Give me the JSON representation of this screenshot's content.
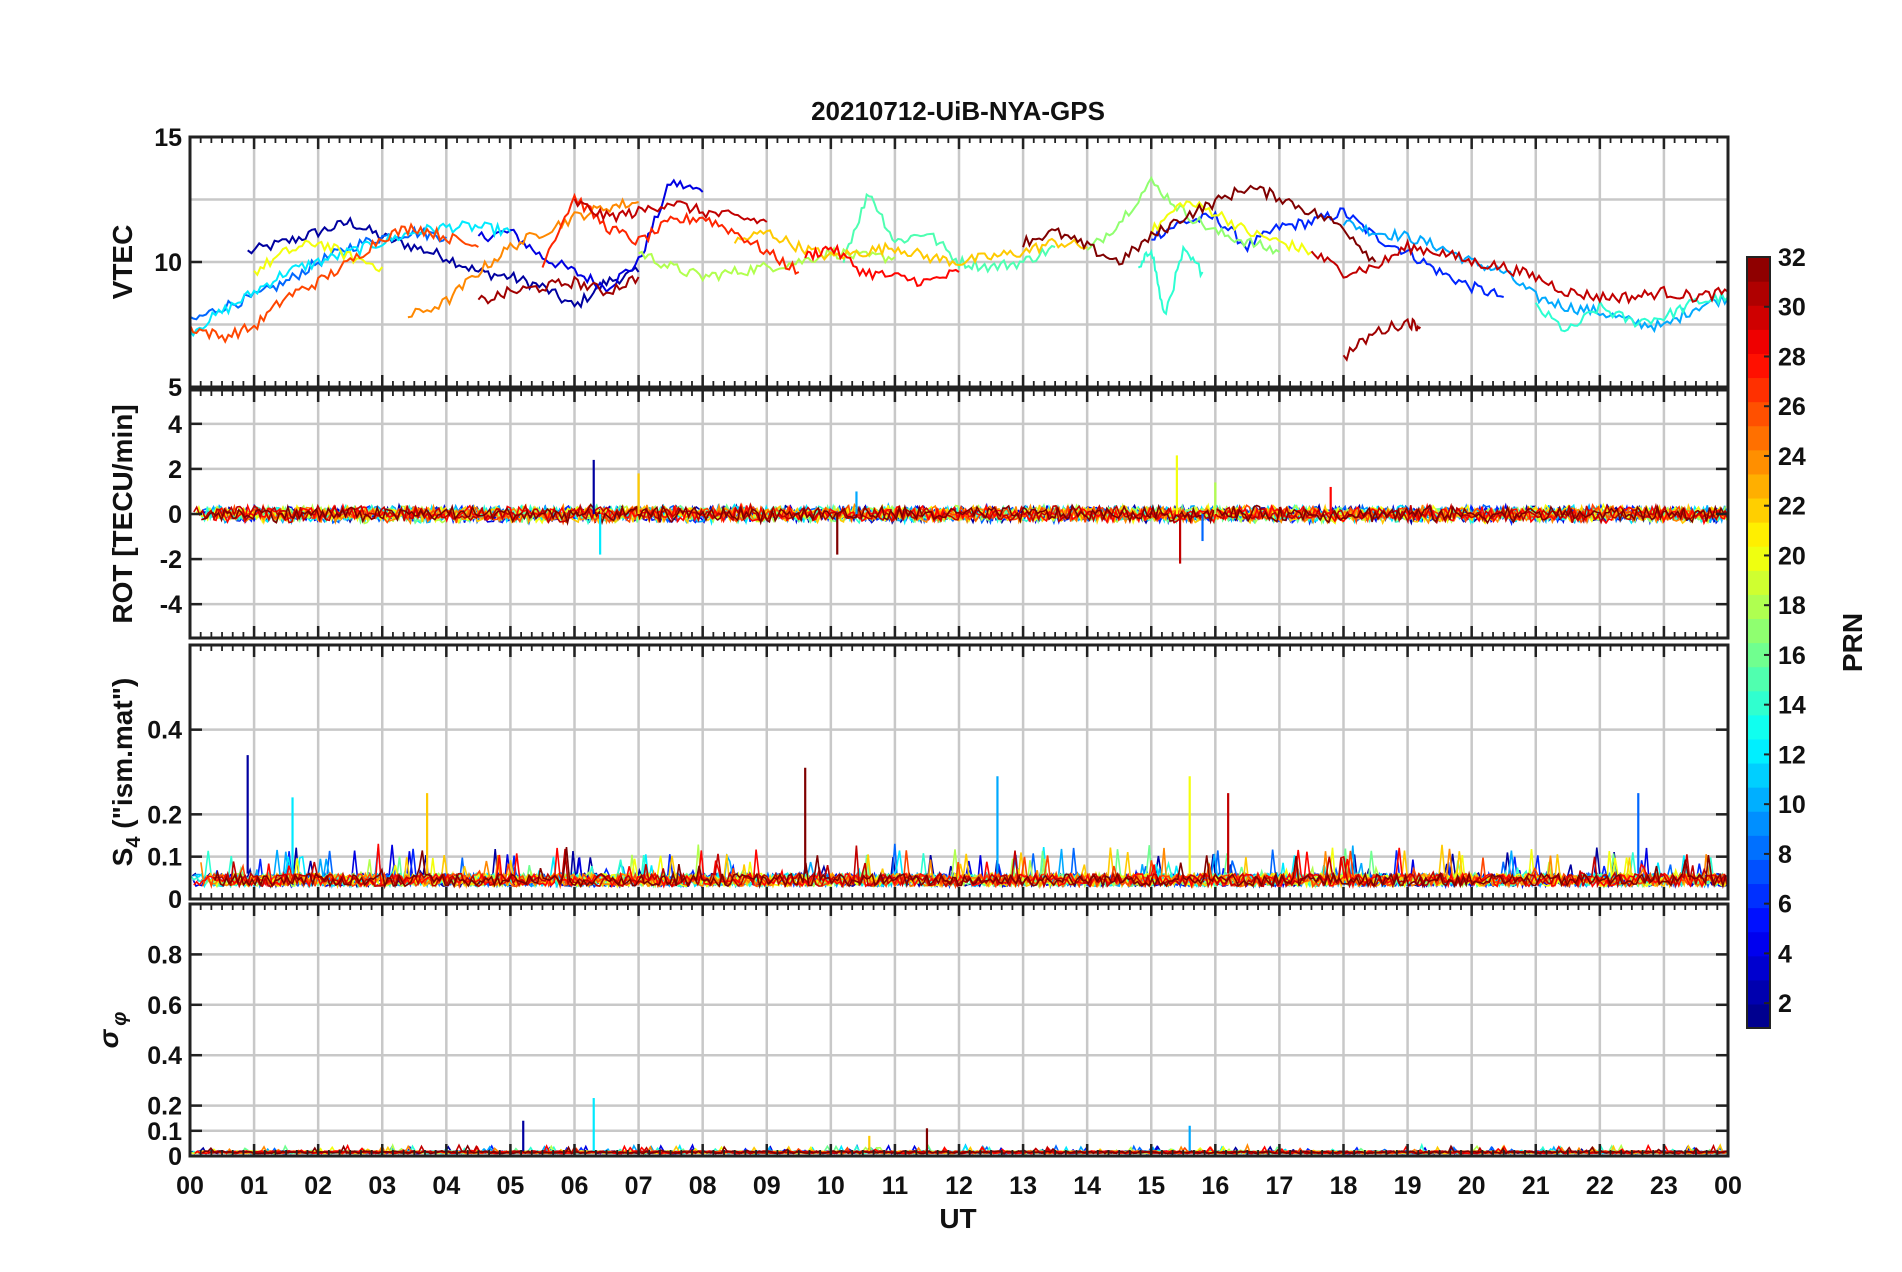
{
  "chart_data": {
    "type": "line",
    "title": "20210712-UiB-NYA-GPS",
    "xlabel": "UT",
    "x_tick_labels": [
      "00",
      "01",
      "02",
      "03",
      "04",
      "05",
      "06",
      "07",
      "08",
      "09",
      "10",
      "11",
      "12",
      "13",
      "14",
      "15",
      "16",
      "17",
      "18",
      "19",
      "20",
      "21",
      "22",
      "23",
      "00"
    ],
    "xlim": [
      0,
      24
    ],
    "panels": [
      {
        "id": "vtec",
        "ylabel": "VTEC",
        "ylim": [
          5,
          15
        ],
        "yticks": [
          5,
          10,
          15
        ],
        "ytick_labels": [
          "5",
          "10",
          "15"
        ],
        "minor_grid_ystep": 2.5,
        "series": [
          {
            "prn": 2,
            "x": [
              0.9,
              1.5,
              2.0,
              2.5,
              3.0,
              3.5,
              4.0,
              4.5,
              5.0,
              5.5,
              6.0,
              6.5,
              7.0
            ],
            "y": [
              10.4,
              10.8,
              11.2,
              11.6,
              11.0,
              10.6,
              10.2,
              9.6,
              9.4,
              9.0,
              8.2,
              9.2,
              9.6
            ]
          },
          {
            "prn": 4,
            "x": [
              4.5,
              5.0,
              5.5,
              6.0,
              6.5,
              7.0,
              7.5,
              8.0
            ],
            "y": [
              11.0,
              11.2,
              10.2,
              9.6,
              9.0,
              10.0,
              13.2,
              12.8
            ]
          },
          {
            "prn": 6,
            "x": [
              15.0,
              15.5,
              16.0,
              16.5,
              17.0,
              17.5,
              18.0,
              18.5,
              19.0,
              19.5,
              20.0,
              20.5
            ],
            "y": [
              11.0,
              11.6,
              11.8,
              10.6,
              11.4,
              11.6,
              12.0,
              11.0,
              10.4,
              9.6,
              9.0,
              8.6
            ]
          },
          {
            "prn": 8,
            "x": [
              0.0,
              0.5,
              1.0,
              1.5,
              2.0,
              2.5,
              3.0,
              3.5,
              4.0
            ],
            "y": [
              7.6,
              8.2,
              8.6,
              9.2,
              10.0,
              10.6,
              11.0,
              11.2,
              11.0
            ]
          },
          {
            "prn": 10,
            "x": [
              18.0,
              18.5,
              19.0,
              19.5,
              20.0,
              20.5,
              21.0,
              21.5,
              22.0,
              22.5,
              23.0,
              23.5,
              24.0
            ],
            "y": [
              11.6,
              11.2,
              11.0,
              10.6,
              10.0,
              9.6,
              8.6,
              8.2,
              8.0,
              7.6,
              7.4,
              8.2,
              8.6
            ]
          },
          {
            "prn": 12,
            "x": [
              0.0,
              0.5,
              1.0,
              1.5,
              2.0,
              2.5,
              3.0,
              3.5,
              4.0,
              4.5,
              5.0
            ],
            "y": [
              7.2,
              8.0,
              8.8,
              9.6,
              10.0,
              10.4,
              10.8,
              11.2,
              11.4,
              11.4,
              11.2
            ]
          },
          {
            "prn": 14,
            "x": [
              21.0,
              21.5,
              22.0,
              22.5,
              23.0,
              23.5,
              24.0
            ],
            "y": [
              8.2,
              7.2,
              8.2,
              7.6,
              7.8,
              8.4,
              8.6
            ]
          },
          {
            "prn": 14,
            "x": [
              14.8,
              15.0,
              15.2,
              15.5,
              15.8
            ],
            "y": [
              9.6,
              10.6,
              7.8,
              10.4,
              9.6
            ]
          },
          {
            "prn": 15,
            "x": [
              10.2,
              10.6,
              11.0,
              11.5,
              12.0,
              12.5,
              13.0,
              13.5
            ],
            "y": [
              10.2,
              12.8,
              10.8,
              11.2,
              10.0,
              9.8,
              10.0,
              10.6
            ]
          },
          {
            "prn": 17,
            "x": [
              14.0,
              14.5,
              15.0,
              15.5,
              16.0,
              16.5,
              17.0
            ],
            "y": [
              10.4,
              11.6,
              13.2,
              12.0,
              11.2,
              10.8,
              10.4
            ]
          },
          {
            "prn": 18,
            "x": [
              7.0,
              7.5,
              8.0,
              8.5,
              9.0,
              9.5,
              10.0,
              10.5,
              11.0
            ],
            "y": [
              10.4,
              9.8,
              9.4,
              9.6,
              9.8,
              10.0,
              10.4,
              10.2,
              10.2
            ]
          },
          {
            "prn": 20,
            "x": [
              1.0,
              1.5,
              2.0,
              2.5,
              3.0
            ],
            "y": [
              9.6,
              10.4,
              10.8,
              10.2,
              9.8
            ]
          },
          {
            "prn": 20,
            "x": [
              15.0,
              15.5,
              16.0,
              16.5,
              17.0,
              17.5
            ],
            "y": [
              11.2,
              12.4,
              12.0,
              11.2,
              10.8,
              10.4
            ]
          },
          {
            "prn": 22,
            "x": [
              8.5,
              9.0,
              9.5,
              10.0,
              10.5,
              11.0,
              11.5,
              12.0,
              12.5,
              13.0,
              13.5,
              14.0
            ],
            "y": [
              10.8,
              11.2,
              10.6,
              10.2,
              10.4,
              10.6,
              10.2,
              10.0,
              10.2,
              10.4,
              10.8,
              10.6
            ]
          },
          {
            "prn": 24,
            "x": [
              3.4,
              4.0,
              4.5,
              5.0,
              5.5,
              6.0,
              6.5,
              7.0
            ],
            "y": [
              7.8,
              8.4,
              9.6,
              10.6,
              11.2,
              11.8,
              12.2,
              12.4
            ]
          },
          {
            "prn": 26,
            "x": [
              0.0,
              0.5,
              1.0,
              1.5,
              2.0,
              2.5,
              3.0,
              3.5,
              4.0,
              4.5
            ],
            "y": [
              7.4,
              7.0,
              7.4,
              8.6,
              9.2,
              10.0,
              11.0,
              11.4,
              11.0,
              10.6
            ]
          },
          {
            "prn": 27,
            "x": [
              5.5,
              6.0,
              6.5,
              7.0,
              7.5,
              8.0,
              8.5,
              9.0,
              9.5
            ],
            "y": [
              10.0,
              12.6,
              11.4,
              10.8,
              11.6,
              11.8,
              11.2,
              10.4,
              9.6
            ]
          },
          {
            "prn": 28,
            "x": [
              9.6,
              10.0,
              10.5,
              11.0,
              11.5,
              12.0
            ],
            "y": [
              10.2,
              10.6,
              9.6,
              9.4,
              9.2,
              9.6
            ]
          },
          {
            "prn": 30,
            "x": [
              6.0,
              6.5,
              7.0,
              7.5,
              8.0,
              8.5,
              9.0
            ],
            "y": [
              12.4,
              11.8,
              12.0,
              12.4,
              12.0,
              11.8,
              11.6
            ]
          },
          {
            "prn": 30,
            "x": [
              17.5,
              18.0,
              18.5,
              19.0,
              19.5,
              20.0,
              20.5,
              21.0,
              21.5,
              22.0,
              22.5,
              23.0,
              23.5,
              24.0
            ],
            "y": [
              10.4,
              9.6,
              9.8,
              10.6,
              10.4,
              10.0,
              9.8,
              9.4,
              8.8,
              8.6,
              8.6,
              8.8,
              8.6,
              8.8
            ]
          },
          {
            "prn": 31,
            "x": [
              4.5,
              5.0,
              5.5,
              6.0,
              6.5,
              7.0
            ],
            "y": [
              8.4,
              8.8,
              9.0,
              9.2,
              8.8,
              9.4
            ]
          },
          {
            "prn": 31,
            "x": [
              18.0,
              18.5,
              19.0,
              19.2
            ],
            "y": [
              6.2,
              7.2,
              7.6,
              7.4
            ]
          },
          {
            "prn": 32,
            "x": [
              13.0,
              13.5,
              14.0,
              14.5,
              15.0,
              15.5,
              16.0,
              16.5,
              17.0,
              17.5,
              18.0,
              18.5
            ],
            "y": [
              10.8,
              11.2,
              10.6,
              10.0,
              11.0,
              11.8,
              12.4,
              13.0,
              12.6,
              12.0,
              11.4,
              10.0
            ]
          }
        ]
      },
      {
        "id": "rot",
        "ylabel": "ROT [TECU/min]",
        "ylim": [
          -5.5,
          5.5
        ],
        "yticks": [
          -4,
          -2,
          0,
          2,
          4
        ],
        "ytick_labels": [
          "-4",
          "-2",
          "0",
          "2",
          "4"
        ],
        "noise_base": 0.3,
        "spikes": [
          [
            6.3,
            2.4
          ],
          [
            6.4,
            -1.8
          ],
          [
            7.0,
            1.8
          ],
          [
            10.1,
            -1.8
          ],
          [
            10.4,
            1.0
          ],
          [
            15.4,
            2.6
          ],
          [
            15.45,
            -2.2
          ],
          [
            15.8,
            -1.2
          ],
          [
            16.0,
            1.4
          ],
          [
            17.8,
            1.2
          ]
        ]
      },
      {
        "id": "s4",
        "ylabel": "S4 (\"ism.mat\")",
        "ylim": [
          0,
          0.6
        ],
        "yticks": [
          0,
          0.1,
          0.2,
          0.4
        ],
        "ytick_labels": [
          "0",
          "0.1",
          "0.2",
          "0.4"
        ],
        "noise_base": 0.06,
        "spikes": [
          [
            0.9,
            0.34
          ],
          [
            1.6,
            0.24
          ],
          [
            3.7,
            0.25
          ],
          [
            9.6,
            0.31
          ],
          [
            12.6,
            0.29
          ],
          [
            15.6,
            0.29
          ],
          [
            16.2,
            0.25
          ],
          [
            22.6,
            0.25
          ]
        ]
      },
      {
        "id": "sigma_phi",
        "ylabel": "σ φ",
        "ylim": [
          0,
          1.0
        ],
        "yticks": [
          0,
          0.1,
          0.2,
          0.4,
          0.6,
          0.8
        ],
        "ytick_labels": [
          "0",
          "0.1",
          "0.2",
          "0.4",
          "0.6",
          "0.8"
        ],
        "noise_base": 0.02,
        "spikes": [
          [
            5.2,
            0.14
          ],
          [
            6.3,
            0.23
          ],
          [
            10.6,
            0.08
          ],
          [
            11.5,
            0.11
          ],
          [
            15.6,
            0.12
          ]
        ]
      }
    ],
    "colorbar": {
      "label": "PRN",
      "colormap": "jet",
      "range": [
        1,
        32
      ],
      "tick_labels": [
        "2",
        "4",
        "6",
        "8",
        "10",
        "12",
        "14",
        "16",
        "18",
        "20",
        "22",
        "24",
        "26",
        "28",
        "30",
        "32"
      ]
    }
  }
}
